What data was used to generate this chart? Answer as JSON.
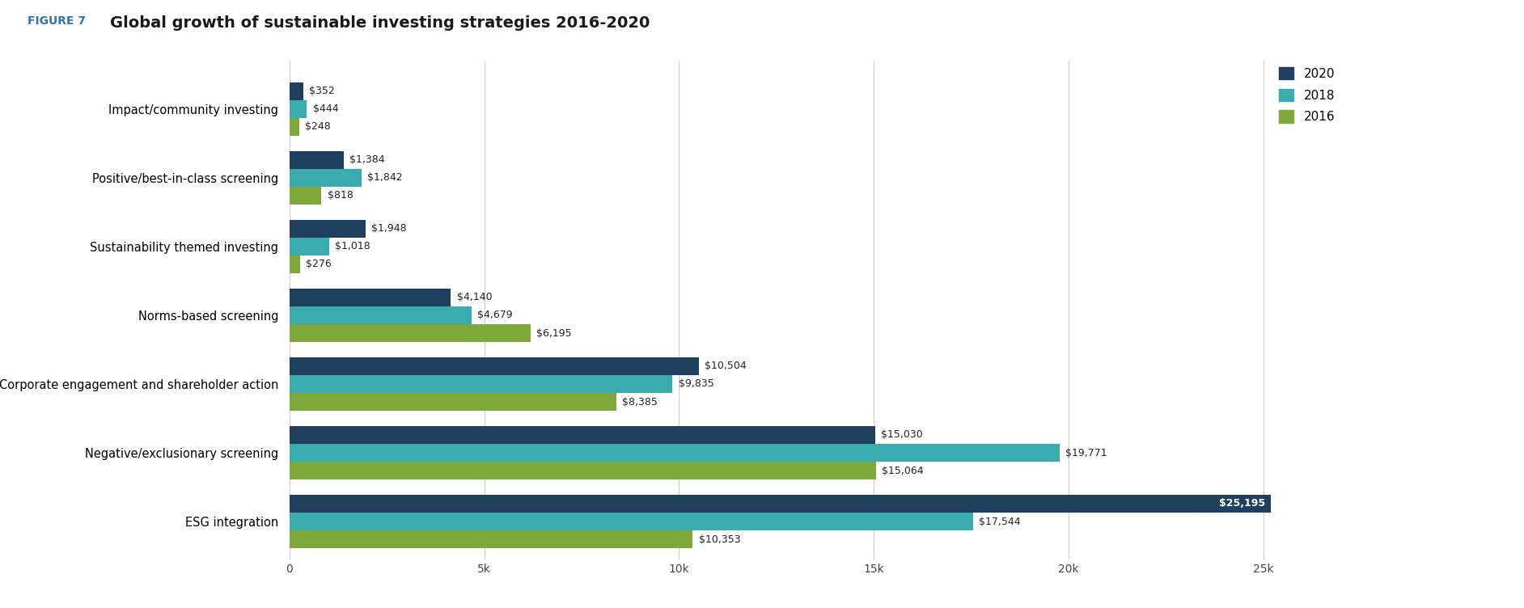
{
  "title_prefix": "FIGURE 7",
  "title_prefix_color": "#2e75b6",
  "title_main": "Global growth of sustainable investing strategies 2016-2020",
  "title_color": "#1a1a1a",
  "categories": [
    "ESG integration",
    "Negative/exclusionary screening",
    "Corporate engagement and shareholder action",
    "Norms-based screening",
    "Sustainability themed investing",
    "Positive/best-in-class screening",
    "Impact/community investing"
  ],
  "values_2020": [
    25195,
    15030,
    10504,
    4140,
    1948,
    1384,
    352
  ],
  "values_2018": [
    17544,
    19771,
    9835,
    4679,
    1018,
    1842,
    444
  ],
  "values_2016": [
    10353,
    15064,
    8385,
    6195,
    276,
    818,
    248
  ],
  "labels_2020": [
    "$25,195",
    "$15,030",
    "$10,504",
    "$4,140",
    "$1,948",
    "$1,384",
    "$352"
  ],
  "labels_2018": [
    "$17,544",
    "$19,771",
    "$9,835",
    "$4,679",
    "$1,018",
    "$1,842",
    "$444"
  ],
  "labels_2016": [
    "$10,353",
    "$15,064",
    "$8,385",
    "$6,195",
    "$276",
    "$818",
    "$248"
  ],
  "color_2020": "#1f3f5e",
  "color_2018": "#3aacb0",
  "color_2016": "#7ea83a",
  "xlim": [
    0,
    27000
  ],
  "xticks": [
    0,
    5000,
    10000,
    15000,
    20000,
    25000
  ],
  "xtick_labels": [
    "0",
    "5k",
    "10k",
    "15k",
    "20k",
    "25k"
  ],
  "background_color": "#ffffff",
  "bar_height": 0.26,
  "figure_label_fontsize": 10,
  "title_fontsize": 14,
  "tick_fontsize": 10,
  "label_fontsize": 9,
  "category_fontsize": 10.5
}
